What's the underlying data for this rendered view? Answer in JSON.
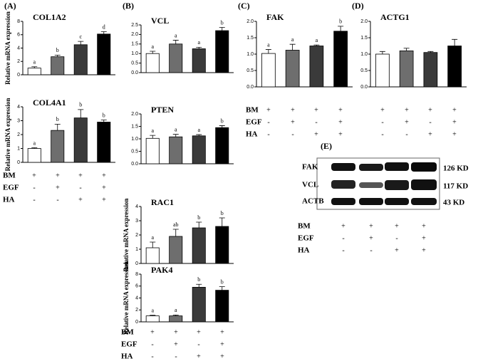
{
  "chart_data": [
    {
      "type": "bar",
      "panel": "(A)",
      "title": "COL1A2",
      "ylabel": "Relative mRNA expression",
      "values": [
        1.0,
        2.7,
        4.5,
        6.1
      ],
      "errors": [
        0.2,
        0.25,
        0.5,
        0.35
      ],
      "letters": [
        "a",
        "b",
        "c",
        "d"
      ],
      "ylim": [
        0,
        8
      ],
      "yticks": [
        0,
        2,
        4,
        6,
        8
      ]
    },
    {
      "type": "bar",
      "title": "COL4A1",
      "ylabel": "Relative mRNA expression",
      "values": [
        1.0,
        2.3,
        3.2,
        2.9
      ],
      "errors": [
        0.05,
        0.45,
        0.6,
        0.15
      ],
      "letters": [
        "a",
        "b",
        "b",
        "b"
      ],
      "ylim": [
        0,
        4
      ],
      "yticks": [
        0,
        1,
        2,
        3,
        4
      ]
    },
    {
      "type": "bar",
      "panel": "(B)",
      "title": "VCL",
      "values": [
        1.0,
        1.5,
        1.25,
        2.2
      ],
      "errors": [
        0.12,
        0.2,
        0.08,
        0.17
      ],
      "letters": [
        "a",
        "a",
        "a",
        "b"
      ],
      "ylim": [
        0,
        2.5
      ],
      "yticks": [
        {
          "value": 0,
          "label": "0.0"
        },
        {
          "value": 0.5,
          "label": "0.5"
        },
        {
          "value": 1,
          "label": "1.0"
        },
        {
          "value": 1.5,
          "label": "1.5"
        },
        {
          "value": 2,
          "label": "2.0"
        },
        {
          "value": 2.5,
          "label": "2.5"
        }
      ]
    },
    {
      "type": "bar",
      "title": "PTEN",
      "values": [
        1.02,
        1.08,
        1.12,
        1.45
      ],
      "errors": [
        0.12,
        0.1,
        0.05,
        0.08
      ],
      "letters": [
        "a",
        "a",
        "a",
        "b"
      ],
      "ylim": [
        0,
        2
      ],
      "yticks": [
        {
          "value": 0,
          "label": "0.0"
        },
        {
          "value": 0.5,
          "label": "0.5"
        },
        {
          "value": 1,
          "label": "1.0"
        },
        {
          "value": 1.5,
          "label": "1.5"
        },
        {
          "value": 2,
          "label": "2.0"
        }
      ]
    },
    {
      "type": "bar",
      "title": "RAC1",
      "ylabel": "Relative mRNA expression",
      "values": [
        1.1,
        1.9,
        2.5,
        2.6
      ],
      "errors": [
        0.4,
        0.5,
        0.4,
        0.6
      ],
      "letters": [
        "a",
        "ab",
        "b",
        "b"
      ],
      "ylim": [
        0,
        4
      ],
      "yticks": [
        0,
        1,
        2,
        3,
        4
      ]
    },
    {
      "type": "bar",
      "title": "PAK4",
      "ylabel": "Relative mRNA expression",
      "values": [
        1.0,
        1.0,
        5.8,
        5.3
      ],
      "errors": [
        0.1,
        0.15,
        0.5,
        0.6
      ],
      "letters": [
        "a",
        "a",
        "b",
        "b"
      ],
      "ylim": [
        0,
        8
      ],
      "yticks": [
        0,
        2,
        4,
        6,
        8
      ]
    },
    {
      "type": "bar",
      "panel": "(C)",
      "title": "FAK",
      "values": [
        1.02,
        1.12,
        1.25,
        1.7
      ],
      "errors": [
        0.12,
        0.18,
        0.03,
        0.15
      ],
      "letters": [
        "a",
        "a",
        "a",
        "b"
      ],
      "ylim": [
        0,
        2
      ],
      "yticks": [
        {
          "value": 0,
          "label": "0.0"
        },
        {
          "value": 0.5,
          "label": "0.5"
        },
        {
          "value": 1,
          "label": "1.0"
        },
        {
          "value": 1.5,
          "label": "1.5"
        },
        {
          "value": 2,
          "label": "2.0"
        }
      ]
    },
    {
      "type": "bar",
      "panel": "(D)",
      "title": "ACTG1",
      "values": [
        1.0,
        1.1,
        1.05,
        1.25
      ],
      "errors": [
        0.08,
        0.08,
        0.03,
        0.2
      ],
      "ylim": [
        0,
        2
      ],
      "yticks": [
        {
          "value": 0,
          "label": "0.0"
        },
        {
          "value": 0.5,
          "label": "0.5"
        },
        {
          "value": 1,
          "label": "1.0"
        },
        {
          "value": 1.5,
          "label": "1.5"
        },
        {
          "value": 2,
          "label": "2.0"
        }
      ]
    }
  ],
  "bar_colors": [
    "#ffffff",
    "#6e6e6e",
    "#3a3a3a",
    "#000000"
  ],
  "treatments": [
    {
      "labels": [
        "BM",
        "EGF",
        "HA"
      ],
      "signs": [
        [
          "+",
          "+",
          "+",
          "+"
        ],
        [
          "-",
          "+",
          "-",
          "+"
        ],
        [
          "-",
          "-",
          "+",
          "+"
        ]
      ]
    },
    {
      "labels": [
        "BM",
        "EGF",
        "HA"
      ],
      "signs": [
        [
          "+",
          "+",
          "+",
          "+"
        ],
        [
          "-",
          "+",
          "-",
          "+"
        ],
        [
          "-",
          "-",
          "+",
          "+"
        ]
      ]
    },
    {
      "labels": [
        "BM",
        "EGF",
        "HA"
      ],
      "signs": [
        [
          "+",
          "+",
          "+",
          "+"
        ],
        [
          "-",
          "+",
          "-",
          "+"
        ],
        [
          "-",
          "-",
          "+",
          "+"
        ]
      ]
    },
    {
      "signs": [
        [
          "+",
          "+",
          "+",
          "+"
        ],
        [
          "-",
          "+",
          "-",
          "+"
        ],
        [
          "-",
          "-",
          "+",
          "+"
        ]
      ]
    },
    {
      "labels": [
        "BM",
        "EGF",
        "HA"
      ],
      "signs": [
        [
          "+",
          "+",
          "+",
          "+"
        ],
        [
          "-",
          "+",
          "-",
          "+"
        ],
        [
          "-",
          "-",
          "+",
          "+"
        ]
      ]
    }
  ],
  "blot": {
    "panel": "(E)",
    "proteins": [
      "FAK",
      "VCL",
      "ACTB"
    ],
    "sizes": [
      "126 KD",
      "117 KD",
      "43 KD"
    ]
  }
}
